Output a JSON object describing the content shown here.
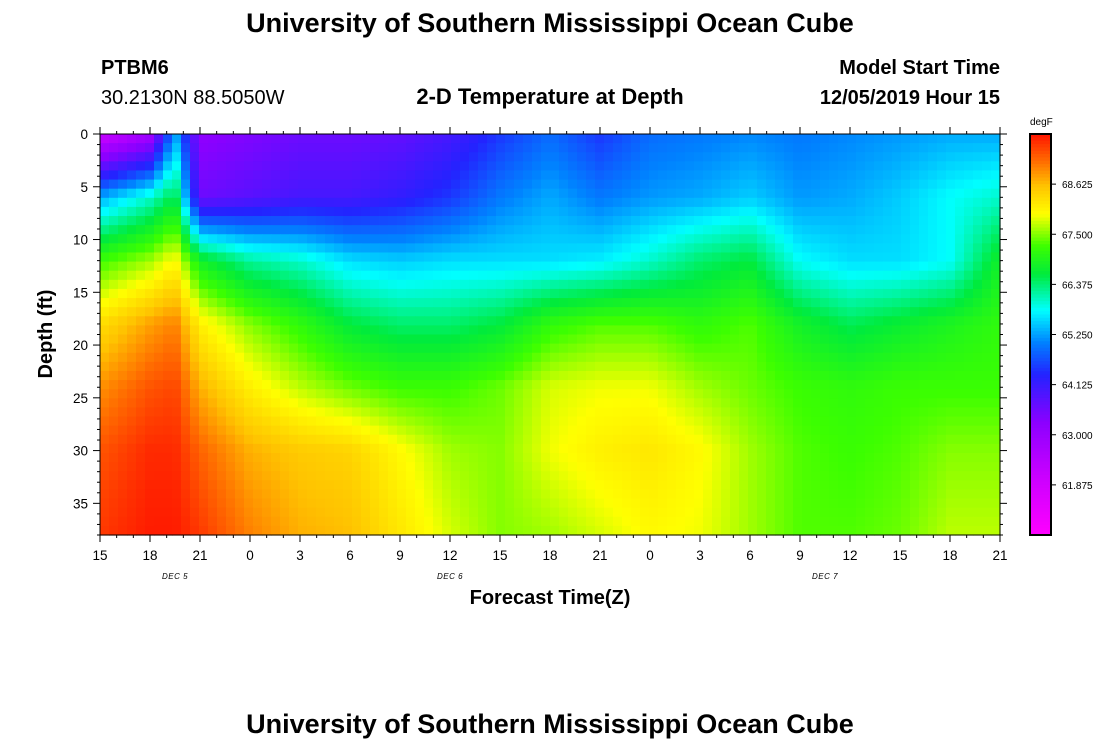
{
  "header": {
    "title_top": "University of Southern Mississippi Ocean Cube",
    "station_id": "PTBM6",
    "station_coords": "30.2130N 88.5050W",
    "plot_title": "2-D Temperature at Depth",
    "model_start_label": "Model Start Time",
    "model_start_value": "12/05/2019 Hour 15",
    "title_bottom": "University of Southern Mississippi Ocean Cube"
  },
  "chart_data": {
    "type": "heatmap",
    "title": "2-D Temperature at Depth",
    "xlabel": "Forecast Time(Z)",
    "ylabel": "Depth (ft)",
    "units": "degF",
    "x_ticks": [
      "15",
      "18",
      "21",
      "0",
      "3",
      "6",
      "9",
      "12",
      "15",
      "18",
      "21",
      "0",
      "3",
      "6",
      "9",
      "12",
      "15",
      "18",
      "21"
    ],
    "x_hours": [
      0,
      3,
      6,
      9,
      12,
      15,
      18,
      21,
      24,
      27,
      30,
      33,
      36,
      39,
      42,
      45,
      48,
      51,
      54
    ],
    "day_labels": [
      {
        "text": "DEC 5",
        "hour": 4.5
      },
      {
        "text": "DEC 6",
        "hour": 21
      },
      {
        "text": "DEC 7",
        "hour": 43.5
      }
    ],
    "y_ticks": [
      0,
      5,
      10,
      15,
      20,
      25,
      30,
      35
    ],
    "ylim": [
      0,
      38
    ],
    "xlim": [
      0,
      54
    ],
    "colorbar": {
      "min": 60.75,
      "max": 69.75,
      "labels": [
        "68.625",
        "67.500",
        "66.375",
        "65.250",
        "64.125",
        "63.000",
        "61.875"
      ]
    },
    "depth_levels_ft": [
      0,
      6,
      12,
      18,
      24,
      30,
      38
    ],
    "time_hours": [
      0,
      3,
      4.5,
      6,
      9,
      12,
      15,
      18,
      21,
      24,
      27,
      30,
      33,
      36,
      39,
      42,
      45,
      48,
      51,
      54
    ],
    "values_degF": [
      [
        62.0,
        62.8,
        65.3,
        63.2,
        63.4,
        63.6,
        63.6,
        63.7,
        64.0,
        64.5,
        64.9,
        64.5,
        64.9,
        65.0,
        65.1,
        65.0,
        65.1,
        65.2,
        65.3,
        65.3
      ],
      [
        65.3,
        66.0,
        66.6,
        63.6,
        63.8,
        64.0,
        64.0,
        64.2,
        64.5,
        65.0,
        65.3,
        65.0,
        65.2,
        65.3,
        65.5,
        65.2,
        65.3,
        65.5,
        65.8,
        66.0
      ],
      [
        67.2,
        67.6,
        68.0,
        66.8,
        66.2,
        66.0,
        65.6,
        65.5,
        65.6,
        65.6,
        65.6,
        65.7,
        66.0,
        66.4,
        66.6,
        65.8,
        65.6,
        65.6,
        65.8,
        66.8
      ],
      [
        68.3,
        68.8,
        69.0,
        68.1,
        67.5,
        67.1,
        66.6,
        66.4,
        66.4,
        66.6,
        67.1,
        67.3,
        67.3,
        67.1,
        67.3,
        66.8,
        66.5,
        66.7,
        66.9,
        67.1
      ],
      [
        68.9,
        69.3,
        69.4,
        68.7,
        68.1,
        67.7,
        67.4,
        67.2,
        67.2,
        67.4,
        67.8,
        67.9,
        67.9,
        67.6,
        67.4,
        67.2,
        67.1,
        67.2,
        67.2,
        67.2
      ],
      [
        69.3,
        69.6,
        69.6,
        69.2,
        68.7,
        68.5,
        68.4,
        68.0,
        67.6,
        67.5,
        67.9,
        68.1,
        68.2,
        68.0,
        67.6,
        67.3,
        67.2,
        67.3,
        67.5,
        67.5
      ],
      [
        69.5,
        69.7,
        69.7,
        69.5,
        69.0,
        68.7,
        68.6,
        68.2,
        67.8,
        67.5,
        67.6,
        67.8,
        68.0,
        67.9,
        67.6,
        67.3,
        67.3,
        67.4,
        67.7,
        67.7
      ]
    ]
  }
}
